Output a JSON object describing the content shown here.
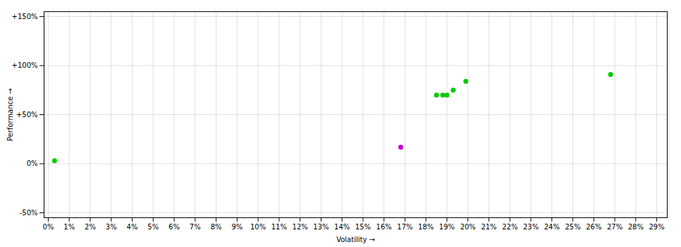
{
  "chart_data": {
    "type": "scatter",
    "xlabel": "Volatility",
    "ylabel": "Performance",
    "xlim": [
      -0.002,
      0.295
    ],
    "ylim": [
      -0.55,
      1.55
    ],
    "xticks": [
      {
        "value": 0.0,
        "label": "0%"
      },
      {
        "value": 0.01,
        "label": "1%"
      },
      {
        "value": 0.02,
        "label": "2%"
      },
      {
        "value": 0.03,
        "label": "3%"
      },
      {
        "value": 0.04,
        "label": "4%"
      },
      {
        "value": 0.05,
        "label": "5%"
      },
      {
        "value": 0.06,
        "label": "6%"
      },
      {
        "value": 0.07,
        "label": "7%"
      },
      {
        "value": 0.08,
        "label": "8%"
      },
      {
        "value": 0.09,
        "label": "9%"
      },
      {
        "value": 0.1,
        "label": "10%"
      },
      {
        "value": 0.11,
        "label": "11%"
      },
      {
        "value": 0.12,
        "label": "12%"
      },
      {
        "value": 0.13,
        "label": "13%"
      },
      {
        "value": 0.14,
        "label": "14%"
      },
      {
        "value": 0.15,
        "label": "15%"
      },
      {
        "value": 0.16,
        "label": "16%"
      },
      {
        "value": 0.17,
        "label": "17%"
      },
      {
        "value": 0.18,
        "label": "18%"
      },
      {
        "value": 0.19,
        "label": "19%"
      },
      {
        "value": 0.2,
        "label": "20%"
      },
      {
        "value": 0.21,
        "label": "21%"
      },
      {
        "value": 0.22,
        "label": "22%"
      },
      {
        "value": 0.23,
        "label": "23%"
      },
      {
        "value": 0.24,
        "label": "24%"
      },
      {
        "value": 0.25,
        "label": "25%"
      },
      {
        "value": 0.26,
        "label": "26%"
      },
      {
        "value": 0.27,
        "label": "27%"
      },
      {
        "value": 0.28,
        "label": "28%"
      },
      {
        "value": 0.29,
        "label": "29%"
      }
    ],
    "yticks": [
      {
        "value": -0.5,
        "label": "-50%"
      },
      {
        "value": 0.0,
        "label": "0%"
      },
      {
        "value": 0.5,
        "label": "+50%"
      },
      {
        "value": 1.0,
        "label": "+100%"
      },
      {
        "value": 1.5,
        "label": "+150%"
      }
    ],
    "grid": true,
    "series": [
      {
        "color": "#00cc00",
        "x": [
          0.003,
          0.185,
          0.188,
          0.19,
          0.193,
          0.199,
          0.268
        ],
        "values": [
          0.03,
          0.7,
          0.7,
          0.7,
          0.75,
          0.84,
          0.91
        ]
      },
      {
        "color": "#cc00cc",
        "x": [
          0.168
        ],
        "values": [
          0.17
        ]
      }
    ]
  }
}
